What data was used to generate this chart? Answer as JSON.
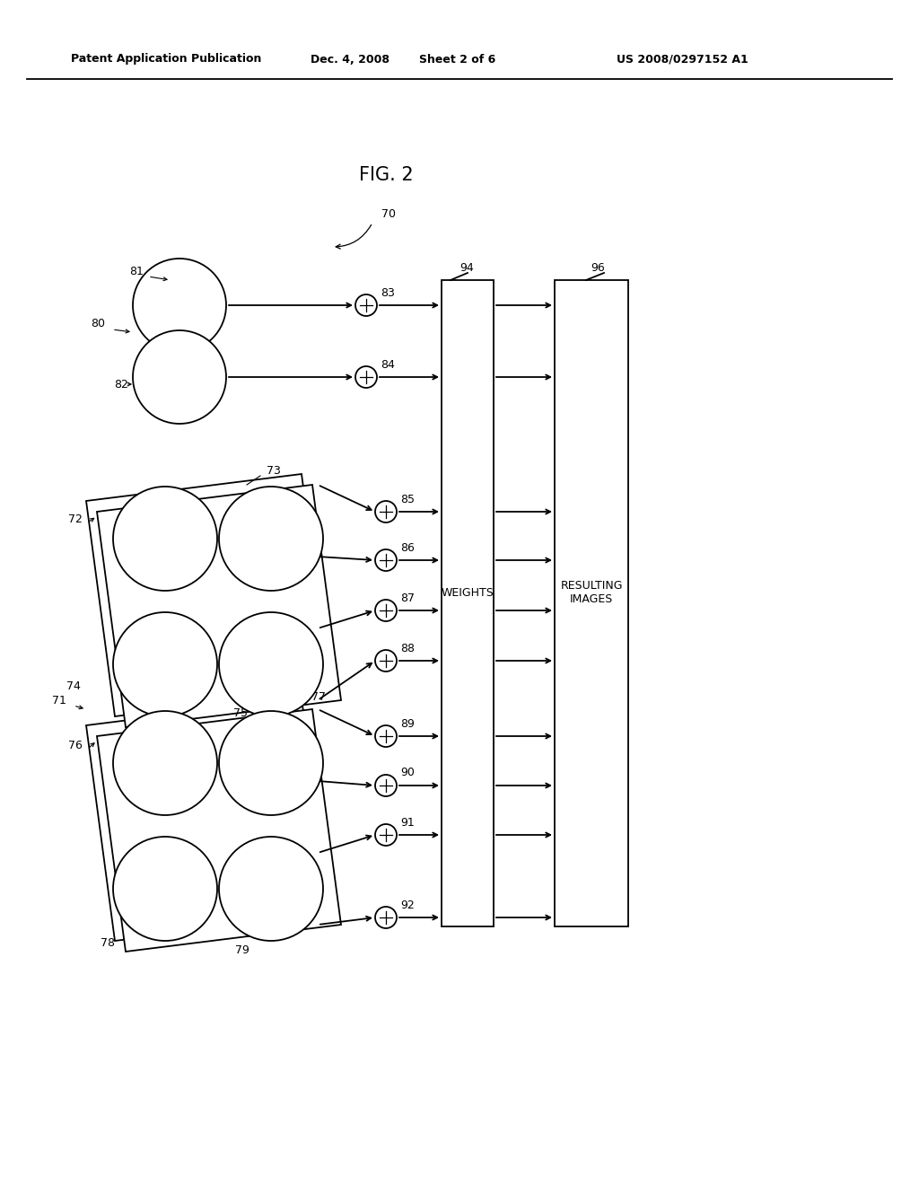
{
  "bg_color": "#ffffff",
  "header_text": "Patent Application Publication",
  "header_date": "Dec. 4, 2008",
  "header_sheet": "Sheet 2 of 6",
  "header_patent": "US 2008/0297152 A1",
  "fig_label": "FIG. 2",
  "ref_70": "70",
  "ref_80": "80",
  "ref_81": "81",
  "ref_82": "82",
  "ref_83": "83",
  "ref_84": "84",
  "ref_71": "71",
  "ref_72": "72",
  "ref_73": "73",
  "ref_74": "74",
  "ref_75": "75",
  "ref_76": "76",
  "ref_77": "77",
  "ref_78": "78",
  "ref_79": "79",
  "ref_85": "85",
  "ref_86": "86",
  "ref_87": "87",
  "ref_88": "88",
  "ref_89": "89",
  "ref_90": "90",
  "ref_91": "91",
  "ref_92": "92",
  "ref_94": "94",
  "ref_96": "96",
  "label_weights": "WEIGHTS",
  "label_resulting": "RESULTING\nIMAGES",
  "line_color": "#000000",
  "text_color": "#000000"
}
